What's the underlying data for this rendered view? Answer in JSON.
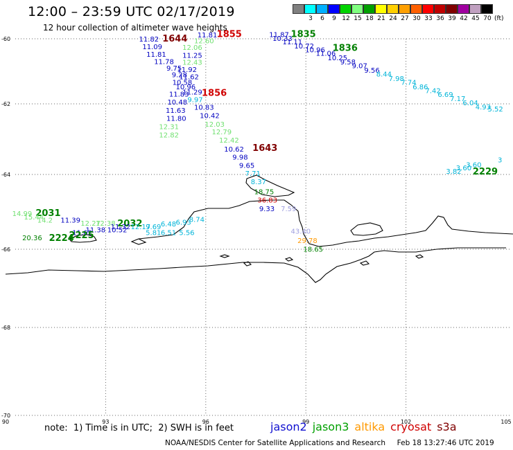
{
  "header": {
    "title": "12:00 – 23:59 UTC 02/17/2019",
    "subtitle": "12 hour collection of altimeter wave heights"
  },
  "colorbar": {
    "unit": "(ft)",
    "steps": [
      {
        "label": "",
        "color": "#808080"
      },
      {
        "label": "3",
        "color": "#00ffff"
      },
      {
        "label": "6",
        "color": "#00b0ff"
      },
      {
        "label": "9",
        "color": "#0000ff"
      },
      {
        "label": "12",
        "color": "#00d400"
      },
      {
        "label": "15",
        "color": "#80ff80"
      },
      {
        "label": "18",
        "color": "#00a000"
      },
      {
        "label": "21",
        "color": "#ffff00"
      },
      {
        "label": "24",
        "color": "#ffd000"
      },
      {
        "label": "27",
        "color": "#ffa000"
      },
      {
        "label": "30",
        "color": "#ff6000"
      },
      {
        "label": "33",
        "color": "#ff0000"
      },
      {
        "label": "36",
        "color": "#c00000"
      },
      {
        "label": "39",
        "color": "#800000"
      },
      {
        "label": "42",
        "color": "#a000a0"
      },
      {
        "label": "45",
        "color": "#c0a0c0"
      },
      {
        "label": "70",
        "color": "#000000"
      }
    ]
  },
  "axes": {
    "lon_ticks": [
      "90",
      "93",
      "96",
      "99",
      "102",
      "105"
    ],
    "lat_ticks": [
      "-60",
      "-62",
      "-64",
      "-66",
      "-68",
      "-70"
    ],
    "lon_range": [
      90,
      105
    ],
    "lat_range": [
      -70,
      -60
    ]
  },
  "sat_colors": {
    "jason2": "#0000c0",
    "jason3": "#008000",
    "altika": "#ff9900",
    "cryosat": "#d00000",
    "s3a": "#800000",
    "cyan": "#00b4d8",
    "lgreen": "#70e070",
    "lav": "#a0a0e0"
  },
  "map_data": {
    "labels": [
      {
        "t": "11.81",
        "lon": 95.75,
        "lat": -59.96,
        "c": "jason2"
      },
      {
        "t": "1855",
        "lon": 96.33,
        "lat": -59.95,
        "c": "cryosat",
        "big": true
      },
      {
        "t": "11.82",
        "lon": 94.0,
        "lat": -60.08,
        "c": "jason2"
      },
      {
        "t": "1644",
        "lon": 94.7,
        "lat": -60.08,
        "c": "s3a",
        "big": true
      },
      {
        "t": "12.60",
        "lon": 95.65,
        "lat": -60.14,
        "c": "lgreen"
      },
      {
        "t": "11.09",
        "lon": 94.1,
        "lat": -60.32,
        "c": "jason2"
      },
      {
        "t": "12.06",
        "lon": 95.3,
        "lat": -60.34,
        "c": "lgreen"
      },
      {
        "t": "11.81",
        "lon": 94.22,
        "lat": -60.55,
        "c": "jason2"
      },
      {
        "t": "11.25",
        "lon": 95.3,
        "lat": -60.58,
        "c": "jason2"
      },
      {
        "t": "11.78",
        "lon": 94.45,
        "lat": -60.78,
        "c": "jason2"
      },
      {
        "t": "12.43",
        "lon": 95.3,
        "lat": -60.8,
        "c": "lgreen"
      },
      {
        "t": "9.75",
        "lon": 94.82,
        "lat": -60.98,
        "c": "jason2"
      },
      {
        "t": "11.92",
        "lon": 95.14,
        "lat": -61.02,
        "c": "jason2"
      },
      {
        "t": "9.28",
        "lon": 94.98,
        "lat": -61.18,
        "c": "jason2"
      },
      {
        "t": "11.62",
        "lon": 95.2,
        "lat": -61.24,
        "c": "jason2"
      },
      {
        "t": "10.58",
        "lon": 95.0,
        "lat": -61.42,
        "c": "jason2"
      },
      {
        "t": "10.96",
        "lon": 95.1,
        "lat": -61.55,
        "c": "jason2"
      },
      {
        "t": "11.29",
        "lon": 95.3,
        "lat": -61.71,
        "c": "jason2"
      },
      {
        "t": "1856",
        "lon": 95.88,
        "lat": -61.75,
        "c": "cryosat",
        "big": true
      },
      {
        "t": "11.83",
        "lon": 94.9,
        "lat": -61.78,
        "c": "jason2"
      },
      {
        "t": "9.97",
        "lon": 95.45,
        "lat": -61.95,
        "c": "cyan"
      },
      {
        "t": "10.48",
        "lon": 94.85,
        "lat": -62.02,
        "c": "jason2"
      },
      {
        "t": "10.83",
        "lon": 95.65,
        "lat": -62.17,
        "c": "jason2"
      },
      {
        "t": "11.63",
        "lon": 94.8,
        "lat": -62.25,
        "c": "jason2"
      },
      {
        "t": "10.42",
        "lon": 95.82,
        "lat": -62.4,
        "c": "jason2"
      },
      {
        "t": "11.80",
        "lon": 94.82,
        "lat": -62.48,
        "c": "jason2"
      },
      {
        "t": "12.03",
        "lon": 95.97,
        "lat": -62.65,
        "c": "lgreen"
      },
      {
        "t": "12.31",
        "lon": 94.6,
        "lat": -62.72,
        "c": "lgreen"
      },
      {
        "t": "12.79",
        "lon": 96.18,
        "lat": -62.86,
        "c": "lgreen"
      },
      {
        "t": "12.82",
        "lon": 94.6,
        "lat": -62.95,
        "c": "lgreen"
      },
      {
        "t": "12.42",
        "lon": 96.4,
        "lat": -63.1,
        "c": "lgreen"
      },
      {
        "t": "1643",
        "lon": 97.4,
        "lat": -63.33,
        "c": "s3a",
        "big": true
      },
      {
        "t": "10.62",
        "lon": 96.55,
        "lat": -63.35,
        "c": "jason2"
      },
      {
        "t": "9.98",
        "lon": 96.8,
        "lat": -63.58,
        "c": "jason2"
      },
      {
        "t": "9.65",
        "lon": 97.0,
        "lat": -63.81,
        "c": "jason2"
      },
      {
        "t": "7.71",
        "lon": 97.18,
        "lat": -64.04,
        "c": "cyan"
      },
      {
        "t": "8.37",
        "lon": 97.35,
        "lat": -64.26,
        "c": "cyan"
      },
      {
        "t": "18.75",
        "lon": 97.45,
        "lat": -64.53,
        "c": "jason3"
      },
      {
        "t": "36.83",
        "lon": 97.55,
        "lat": -64.75,
        "c": "cryosat"
      },
      {
        "t": "9.33",
        "lon": 97.6,
        "lat": -64.98,
        "c": "jason2"
      },
      {
        "t": "7.59",
        "lon": 98.25,
        "lat": -64.98,
        "c": "lav"
      },
      {
        "t": "43.40",
        "lon": 98.55,
        "lat": -65.58,
        "c": "lav"
      },
      {
        "t": "29.78",
        "lon": 98.75,
        "lat": -65.83,
        "c": "altika"
      },
      {
        "t": "18.65",
        "lon": 98.92,
        "lat": -66.06,
        "c": "jason3"
      },
      {
        "t": "11.87",
        "lon": 97.9,
        "lat": -59.95,
        "c": "jason2"
      },
      {
        "t": "1835",
        "lon": 98.55,
        "lat": -59.95,
        "c": "jason3",
        "big": true
      },
      {
        "t": "10.33",
        "lon": 98.0,
        "lat": -60.06,
        "c": "jason2"
      },
      {
        "t": "11.11",
        "lon": 98.3,
        "lat": -60.17,
        "c": "jason2"
      },
      {
        "t": "10.72",
        "lon": 98.65,
        "lat": -60.3,
        "c": "jason2"
      },
      {
        "t": "1836",
        "lon": 99.8,
        "lat": -60.37,
        "c": "jason3",
        "big": true
      },
      {
        "t": "10.96",
        "lon": 98.98,
        "lat": -60.42,
        "c": "jason2"
      },
      {
        "t": "11.06",
        "lon": 99.3,
        "lat": -60.52,
        "c": "jason2"
      },
      {
        "t": "10.25",
        "lon": 99.65,
        "lat": -60.66,
        "c": "jason2"
      },
      {
        "t": "9.58",
        "lon": 100.03,
        "lat": -60.79,
        "c": "jason2"
      },
      {
        "t": "9.07",
        "lon": 100.38,
        "lat": -60.9,
        "c": "jason2"
      },
      {
        "t": "9.56",
        "lon": 100.75,
        "lat": -61.04,
        "c": "jason2"
      },
      {
        "t": "8.44",
        "lon": 101.11,
        "lat": -61.16,
        "c": "cyan"
      },
      {
        "t": "7.98",
        "lon": 101.48,
        "lat": -61.3,
        "c": "cyan"
      },
      {
        "t": "7.74",
        "lon": 101.85,
        "lat": -61.42,
        "c": "cyan"
      },
      {
        "t": "6.86",
        "lon": 102.2,
        "lat": -61.55,
        "c": "cyan"
      },
      {
        "t": "7.42",
        "lon": 102.58,
        "lat": -61.67,
        "c": "cyan"
      },
      {
        "t": "6.69",
        "lon": 102.95,
        "lat": -61.79,
        "c": "cyan"
      },
      {
        "t": "7.17",
        "lon": 103.32,
        "lat": -61.92,
        "c": "cyan"
      },
      {
        "t": "6.04",
        "lon": 103.7,
        "lat": -62.04,
        "c": "cyan"
      },
      {
        "t": "4.93",
        "lon": 104.08,
        "lat": -62.16,
        "c": "cyan"
      },
      {
        "t": "5.52",
        "lon": 104.45,
        "lat": -62.22,
        "c": "cyan"
      },
      {
        "t": "3.82",
        "lon": 103.2,
        "lat": -63.98,
        "c": "cyan"
      },
      {
        "t": "3.60",
        "lon": 103.5,
        "lat": -63.88,
        "c": "cyan"
      },
      {
        "t": "3.60",
        "lon": 103.8,
        "lat": -63.79,
        "c": "cyan"
      },
      {
        "t": "3",
        "lon": 104.75,
        "lat": -63.66,
        "c": "cyan"
      },
      {
        "t": "2229",
        "lon": 104.0,
        "lat": -64.0,
        "c": "jason3",
        "big": true
      },
      {
        "t": "14.99",
        "lon": 90.2,
        "lat": -65.11,
        "c": "lgreen"
      },
      {
        "t": "2031",
        "lon": 90.9,
        "lat": -65.11,
        "c": "jason3",
        "big": true
      },
      {
        "t": "15.44",
        "lon": 90.55,
        "lat": -65.2,
        "c": "lgreen"
      },
      {
        "t": "14.2",
        "lon": 90.95,
        "lat": -65.29,
        "c": "lgreen"
      },
      {
        "t": "11.39",
        "lon": 91.65,
        "lat": -65.29,
        "c": "jason2"
      },
      {
        "t": "12.27",
        "lon": 92.25,
        "lat": -65.37,
        "c": "lgreen"
      },
      {
        "t": "12.38",
        "lon": 92.7,
        "lat": -65.37,
        "c": "lgreen"
      },
      {
        "t": "2032",
        "lon": 93.35,
        "lat": -65.39,
        "c": "jason3",
        "big": true
      },
      {
        "t": "11.32",
        "lon": 93.15,
        "lat": -65.46,
        "c": "jason2"
      },
      {
        "t": "12.17",
        "lon": 93.75,
        "lat": -65.46,
        "c": "cyan"
      },
      {
        "t": "9.69",
        "lon": 94.2,
        "lat": -65.46,
        "c": "cyan"
      },
      {
        "t": "6.48",
        "lon": 94.65,
        "lat": -65.39,
        "c": "cyan"
      },
      {
        "t": "6.93",
        "lon": 95.1,
        "lat": -65.34,
        "c": "cyan"
      },
      {
        "t": "8.74",
        "lon": 95.5,
        "lat": -65.27,
        "c": "cyan"
      },
      {
        "t": "5.81",
        "lon": 94.2,
        "lat": -65.62,
        "c": "cyan"
      },
      {
        "t": "6.51",
        "lon": 94.65,
        "lat": -65.62,
        "c": "cyan"
      },
      {
        "t": "5.56",
        "lon": 95.2,
        "lat": -65.62,
        "c": "cyan"
      },
      {
        "t": "11.62",
        "lon": 92.0,
        "lat": -65.62,
        "c": "jason2"
      },
      {
        "t": "11.38",
        "lon": 92.4,
        "lat": -65.55,
        "c": "jason2"
      },
      {
        "t": "10.52",
        "lon": 93.05,
        "lat": -65.55,
        "c": "jason2"
      },
      {
        "t": "20.36",
        "lon": 90.5,
        "lat": -65.76,
        "c": "jason3"
      },
      {
        "t": "2224",
        "lon": 91.3,
        "lat": -65.78,
        "c": "jason3",
        "big": true
      },
      {
        "t": "2225",
        "lon": 91.9,
        "lat": -65.7,
        "c": "jason3",
        "big": true
      }
    ]
  },
  "footer": {
    "note": "note:  1) Time is in UTC;  2) SWH is in feet",
    "legend": [
      {
        "label": "jason2",
        "color": "#1010d0"
      },
      {
        "label": "jason3",
        "color": "#00a000"
      },
      {
        "label": "altika",
        "color": "#ff9900"
      },
      {
        "label": "cryosat",
        "color": "#d00000"
      },
      {
        "label": "s3a",
        "color": "#800000"
      }
    ],
    "credit": "NOAA/NESDIS Center for Satellite Applications and Research     Feb 18 13:27:46 UTC 2019"
  }
}
